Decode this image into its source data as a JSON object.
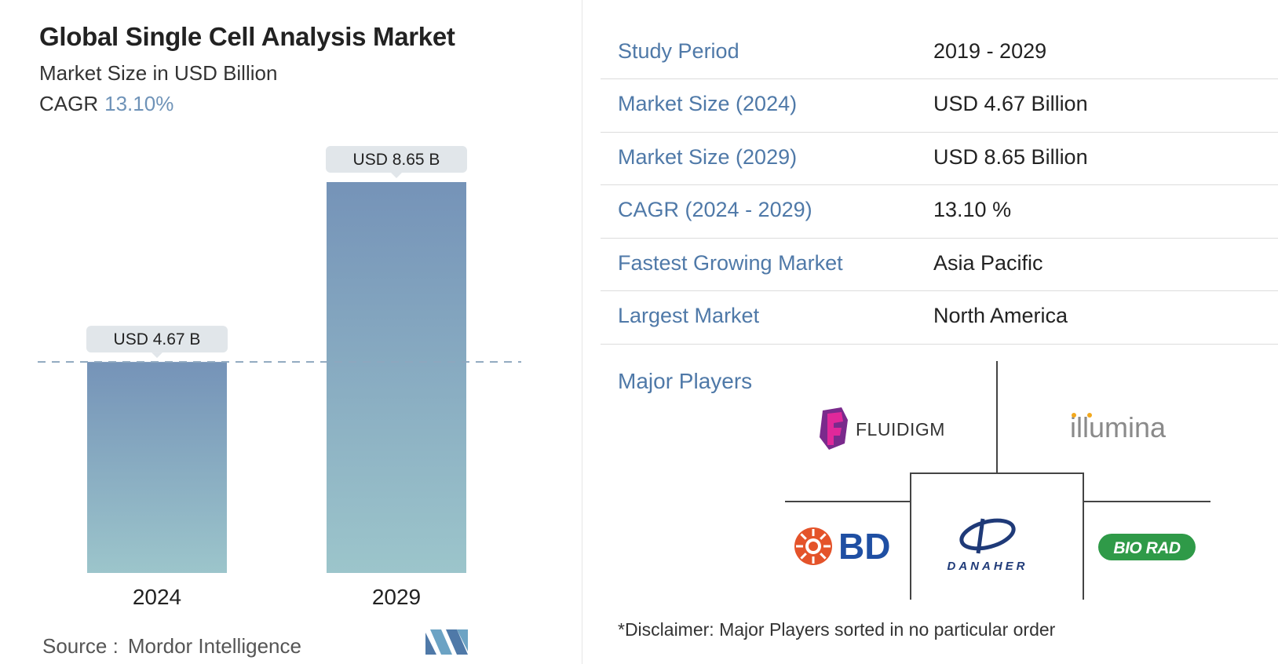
{
  "header": {
    "title": "Global Single Cell Analysis Market",
    "subtitle": "Market Size in USD Billion",
    "cagr_label": "CAGR",
    "cagr_value": "13.10%"
  },
  "chart_data": {
    "type": "bar",
    "categories": [
      "2024",
      "2029"
    ],
    "values": [
      4.67,
      8.65
    ],
    "data_labels": [
      "USD 4.67 B",
      "USD 8.65 B"
    ],
    "ylim": [
      0,
      8.65
    ],
    "reference_line_at": 4.67,
    "grid": false,
    "colors": {
      "bar_top": "#7593b8",
      "bar_bottom": "#9cc5cb",
      "label_bg": "#e1e6ea",
      "dashed_line": "#8ea7bf"
    }
  },
  "source": {
    "label": "Source :",
    "name": "Mordor Intelligence"
  },
  "info_table": [
    {
      "label": "Study Period",
      "value": "2019 - 2029"
    },
    {
      "label": "Market Size (2024)",
      "value": "USD 4.67 Billion"
    },
    {
      "label": "Market Size (2029)",
      "value": "USD 8.65 Billion"
    },
    {
      "label": "CAGR (2024 - 2029)",
      "value": "13.10 %"
    },
    {
      "label": "Fastest Growing Market",
      "value": "Asia Pacific"
    },
    {
      "label": "Largest Market",
      "value": "North America"
    }
  ],
  "players": {
    "heading": "Major Players",
    "logos": {
      "fluidigm": "FLUIDIGM",
      "illumina": "illumina",
      "bd": "BD",
      "danaher": "DANAHER",
      "biorad": "BIO RAD"
    },
    "disclaimer": "*Disclaimer: Major Players sorted in no particular order"
  },
  "colors": {
    "accent": "#4f79a8",
    "cagr": "#6f93b8"
  }
}
